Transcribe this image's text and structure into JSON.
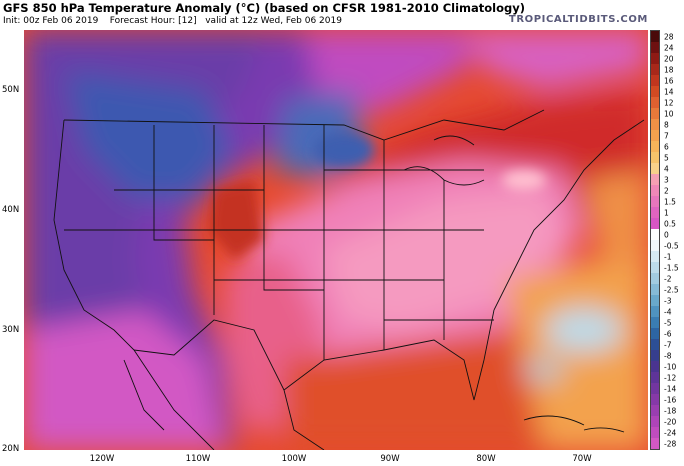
{
  "header": {
    "title": "GFS 850 hPa Temperature Anomaly (°C) (based on CFSR 1981-2010 Climatology)",
    "init": "Init: 00z Feb 06 2019",
    "forecast_hour": "Forecast Hour: [12]",
    "valid": "valid at 12z Wed, Feb 06 2019",
    "brand": "TROPICALTIDBITS.COM"
  },
  "map": {
    "lat_labels": [
      "50N",
      "40N",
      "30N",
      "20N"
    ],
    "lon_labels": [
      "120W",
      "110W",
      "100W",
      "90W",
      "80W",
      "70W"
    ]
  },
  "colorbar": {
    "labels": [
      "28",
      "24",
      "20",
      "18",
      "16",
      "14",
      "12",
      "10",
      "8",
      "7",
      "6",
      "5",
      "4",
      "3",
      "2",
      "1.5",
      "1",
      "0.5",
      "0",
      "-0.5",
      "-1",
      "-1.5",
      "-2",
      "-2.5",
      "-3",
      "-4",
      "-5",
      "-6",
      "-7",
      "-8",
      "-10",
      "-12",
      "-14",
      "-16",
      "-18",
      "-20",
      "-24",
      "-28"
    ],
    "colors": [
      "#4a0a0a",
      "#6e1010",
      "#8e1a14",
      "#a8281a",
      "#c0361e",
      "#d24a22",
      "#e06030",
      "#e8793a",
      "#ef9046",
      "#f3a24e",
      "#f6b45a",
      "#f5c36b",
      "#f7d18a",
      "#f5a0b4",
      "#ef88b8",
      "#e876bc",
      "#e064c0",
      "#d856c4",
      "#ffffff",
      "#f0f7fb",
      "#d6eaf3",
      "#bcdbea",
      "#a2cbe0",
      "#86bad6",
      "#69a8cb",
      "#4f93c0",
      "#3a7db3",
      "#2d65a4",
      "#2c4f96",
      "#363e8e",
      "#4a3490",
      "#5e3498",
      "#7236a0",
      "#8639a8",
      "#9a3eb0",
      "#ae44b8",
      "#c04cbe",
      "#d258c4"
    ]
  }
}
